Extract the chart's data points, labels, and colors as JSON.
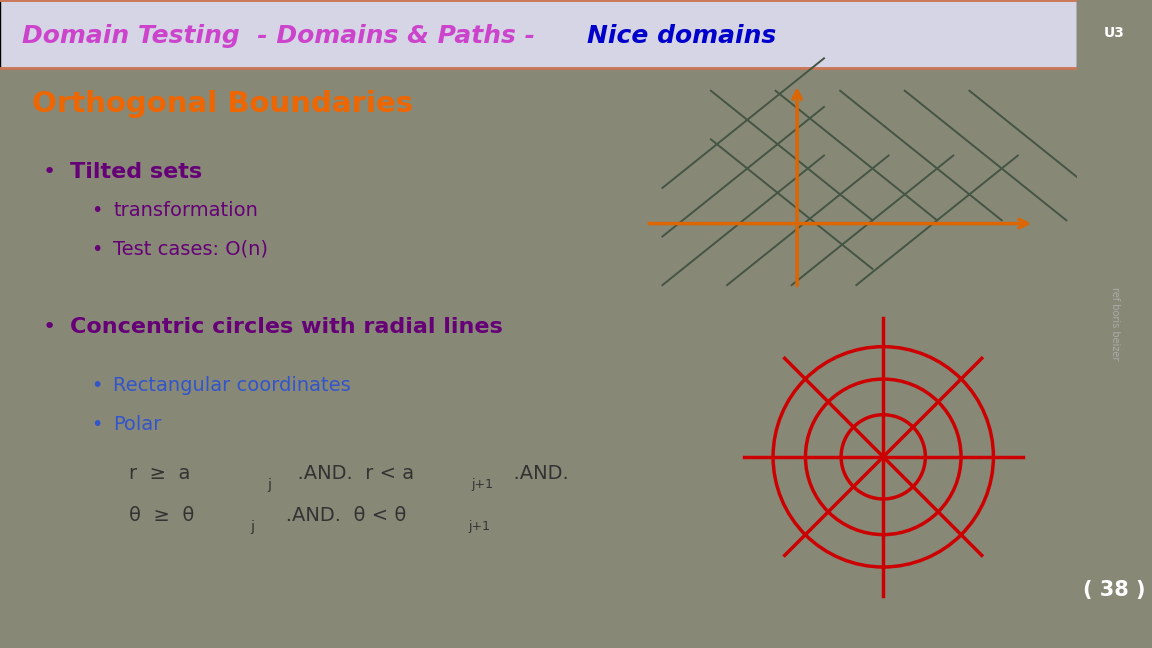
{
  "title_part1": "Domain Testing  - Domains & Paths - ",
  "title_part2": "Nice domains",
  "title_color1": "#cc44cc",
  "title_color2": "#0000cc",
  "header_bg": "#d8d8e8",
  "slide_bg": "#c5d5c5",
  "right_bg": "#7a7055",
  "u3_label": "U3",
  "page_num": "38",
  "heading": "Orthogonal Boundaries",
  "heading_color": "#ee6600",
  "text_color": "#660077",
  "blue_color": "#3355cc",
  "dark_text": "#333333",
  "orange_color": "#dd6600",
  "dark_line_color": "#445544",
  "red_color": "#cc0000",
  "sidebar_text": "#aaaaaa"
}
